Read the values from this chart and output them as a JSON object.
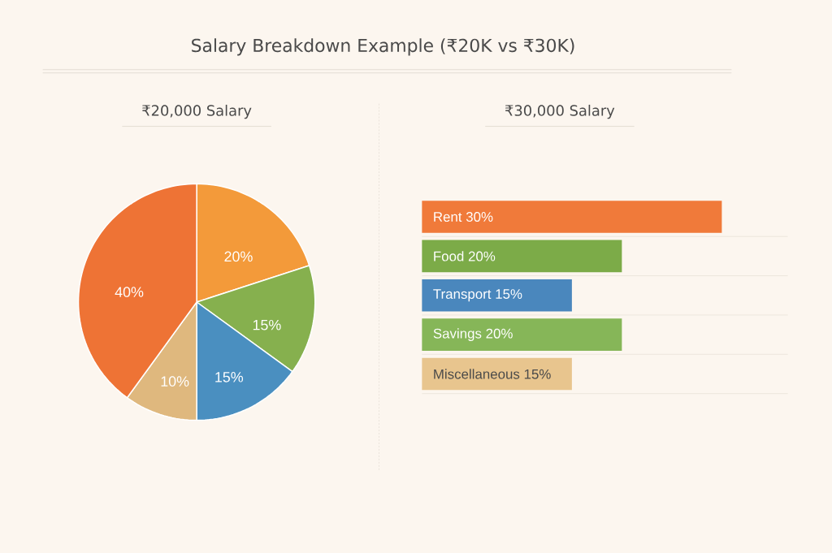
{
  "chart_data": [
    {
      "type": "pie",
      "title": "Salary Breakdown Example (₹20K vs ₹30K)",
      "subtitle": "₹20,000 Salary",
      "categories": [
        null,
        null,
        null,
        null,
        null
      ],
      "values": [
        20,
        15,
        15,
        10,
        40
      ],
      "colors": [
        "#f39a3a",
        "#86b04e",
        "#4a8fc0",
        "#dfb87e",
        "#ee7335"
      ],
      "value_labels": [
        "20%",
        "15%",
        "15%",
        "10%",
        "40%"
      ]
    },
    {
      "type": "bar",
      "orientation": "horizontal",
      "title": "₹30,000 Salary",
      "categories": [
        "Rent",
        "Food",
        "Transport",
        "Savings",
        "Miscellaneous"
      ],
      "values": [
        30,
        20,
        15,
        20,
        15
      ],
      "colors": [
        "#f07a3a",
        "#7cab48",
        "#4a87bd",
        "#86b658",
        "#e8c58e"
      ],
      "value_labels": [
        "30%",
        "20%",
        "15%",
        "20%",
        "15%"
      ]
    }
  ]
}
